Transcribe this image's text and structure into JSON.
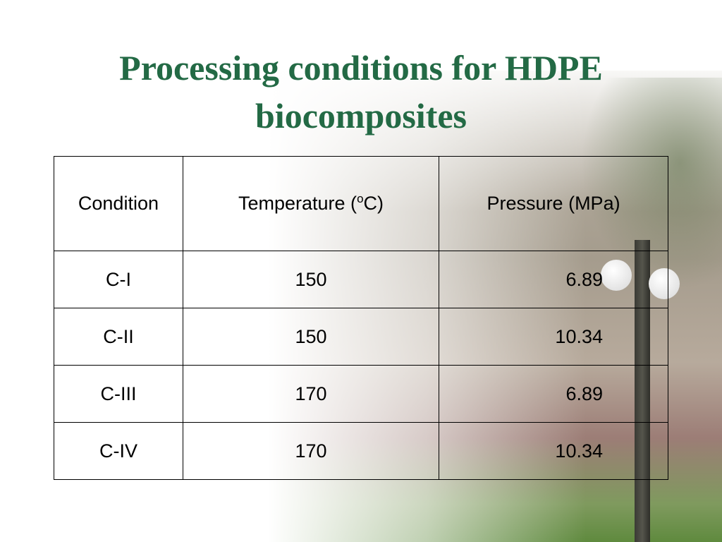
{
  "title": "Processing conditions for HDPE biocomposites",
  "table": {
    "header": [
      "Condition",
      [
        "Temperature (",
        "o",
        "C)"
      ],
      "Pressure (MPa)"
    ],
    "rows": [
      [
        "C-I",
        150,
        6.89
      ],
      [
        "C-II",
        150,
        10.34
      ],
      [
        "C-III",
        170,
        6.89
      ],
      [
        "C-IV",
        170,
        10.34
      ]
    ]
  }
}
